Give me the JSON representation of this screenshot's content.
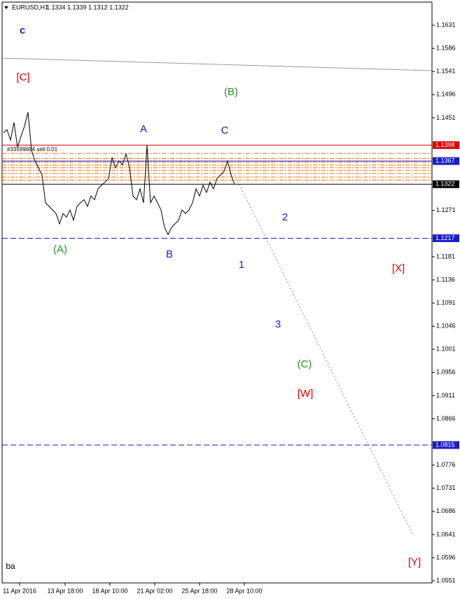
{
  "chart_data": {
    "type": "line",
    "title": "EURUSD,H1",
    "subtitle": "1.1334 1.1339 1.1312 1.1322",
    "values": [
      1.1422,
      1.1428,
      1.1408,
      1.1442,
      1.1394,
      1.1415,
      1.1435,
      1.1462,
      1.1388,
      1.1367,
      1.1354,
      1.134,
      1.1286,
      1.1279,
      1.1272,
      1.1265,
      1.1245,
      1.1265,
      1.1258,
      1.1272,
      1.1252,
      1.1279,
      1.1286,
      1.1292,
      1.1279,
      1.1299,
      1.1292,
      1.1313,
      1.132,
      1.1326,
      1.1333,
      1.1374,
      1.1354,
      1.1367,
      1.136,
      1.1381,
      1.1354,
      1.1299,
      1.1292,
      1.1313,
      1.1286,
      1.1398,
      1.1286,
      1.1299,
      1.1286,
      1.1272,
      1.1238,
      1.1224,
      1.1238,
      1.1245,
      1.1252,
      1.1272,
      1.1265,
      1.1272,
      1.1286,
      1.1313,
      1.1299,
      1.132,
      1.1306,
      1.1326,
      1.1313,
      1.1333,
      1.134,
      1.1347,
      1.1367,
      1.134,
      1.1322
    ],
    "color": "#000000",
    "xlim": [
      -0.4,
      122.4
    ],
    "xticks": [
      {
        "value": 4.6,
        "label": "11 Apr 2016"
      },
      {
        "value": 17.6,
        "label": "13 Apr 18:00"
      },
      {
        "value": 30.4,
        "label": "18 Apr 10:00"
      },
      {
        "value": 43.2,
        "label": "21 Apr 02:00"
      },
      {
        "value": 56,
        "label": "25 Apr 18:00"
      },
      {
        "value": 68.8,
        "label": "28 Apr 10:00"
      }
    ],
    "ylim": [
      1.0547,
      1.1676
    ],
    "yticks": [
      1.1631,
      1.1586,
      1.1541,
      1.1496,
      1.1451,
      1.1271,
      1.1181,
      1.1136,
      1.1091,
      1.1046,
      1.1001,
      1.0956,
      1.0911,
      1.0866,
      1.0776,
      1.0731,
      1.0686,
      1.0641,
      1.0596,
      1.0551
    ],
    "levels": [
      {
        "value": 1.1398,
        "color": "#e00000",
        "dashed": false
      },
      {
        "value": 1.1367,
        "color": "#1a1acc",
        "dashed": false
      },
      {
        "value": 1.1322,
        "color": "#000000",
        "dashed": false
      },
      {
        "value": 1.1217,
        "color": "#1a1acc",
        "dashed": true
      },
      {
        "value": 1.0815,
        "color": "#1a1acc",
        "dashed": true
      }
    ],
    "order_levels": [
      1.1382,
      1.1372,
      1.1365,
      1.1359,
      1.1354,
      1.1349,
      1.1343,
      1.1336,
      1.133
    ],
    "order_color": "#ff6a00",
    "order_label": "#33599684 sell 0.01",
    "annotations": [
      {
        "text": "c",
        "color": "#1a1acc"
      },
      {
        "text": "[C]",
        "color": "#e00000"
      },
      {
        "text": "(B)",
        "color": "#2a8a2a"
      },
      {
        "text": "A",
        "color": "#1a1acc"
      },
      {
        "text": "C",
        "color": "#1a1acc"
      },
      {
        "text": "2",
        "color": "#1a1acc"
      },
      {
        "text": "(A)",
        "color": "#2a8a2a"
      },
      {
        "text": "B",
        "color": "#1a1acc"
      },
      {
        "text": "1",
        "color": "#1a1acc"
      },
      {
        "text": "[X]",
        "color": "#e00000"
      },
      {
        "text": "3",
        "color": "#1a1acc"
      },
      {
        "text": "(C)",
        "color": "#2a8a2a"
      },
      {
        "text": "[W]",
        "color": "#e00000"
      },
      {
        "text": "[Y]",
        "color": "#e00000"
      },
      {
        "text": "ba",
        "color": "#000000"
      }
    ]
  }
}
